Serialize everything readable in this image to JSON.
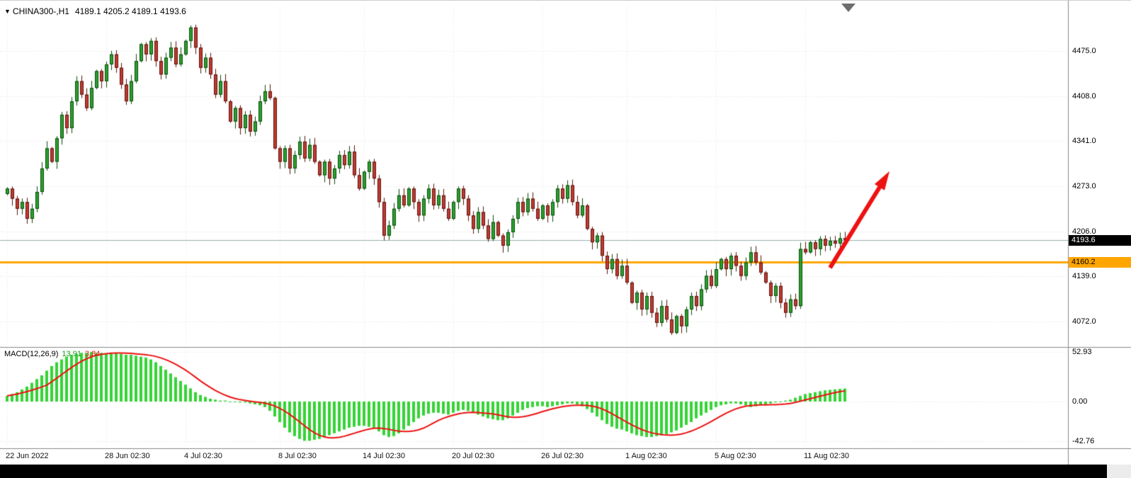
{
  "header": {
    "symbol": "CHINA300-,H1",
    "ohlc": "4189.1 4205.2 4189.1 4193.6"
  },
  "price_axis": {
    "current_price": "4193.6",
    "hline_price": "4160.2"
  },
  "indicator_label": {
    "name": "MACD(12,26,9)",
    "macd_value": "13.91",
    "signal_value": "3.84"
  },
  "colors": {
    "up": "#2aa12e",
    "up_border": "#0c4a0c",
    "down": "#c13a30",
    "down_border": "#5c130d",
    "macd_hist": "#35d435",
    "macd_value_text": "#1f9e1f",
    "signal": "#ee1111",
    "arrow": "#ee1111",
    "hline": "#ffa500",
    "price_line": "#9ab0b0",
    "badge_bid_bg": "#000000",
    "badge_bid_text": "#ffffff"
  },
  "chart_data": {
    "type": "candlestick",
    "symbol": "CHINA300-",
    "timeframe": "H1",
    "title": "CHINA300-,H1",
    "ohlc_current": {
      "open": 4189.1,
      "high": 4205.2,
      "low": 4189.1,
      "close": 4193.6
    },
    "price_ticks": [
      4475.0,
      4408.0,
      4341.0,
      4273.0,
      4206.0,
      4139.0,
      4072.0
    ],
    "current_price": 4193.6,
    "horizontal_line": 4160.2,
    "first_open": 4262,
    "x_ticks": [
      {
        "label": "22 Jun 2022",
        "i": 0
      },
      {
        "label": "28 Jun 02:30",
        "i": 20
      },
      {
        "label": "4 Jul 02:30",
        "i": 36
      },
      {
        "label": "8 Jul 02:30",
        "i": 55
      },
      {
        "label": "14 Jul 02:30",
        "i": 72
      },
      {
        "label": "20 Jul 02:30",
        "i": 90
      },
      {
        "label": "26 Jul 02:30",
        "i": 108
      },
      {
        "label": "1 Aug 02:30",
        "i": 125
      },
      {
        "label": "5 Aug 02:30",
        "i": 143
      },
      {
        "label": "11 Aug 02:30",
        "i": 161
      }
    ],
    "closes": [
      4270,
      4255,
      4240,
      4250,
      4225,
      4240,
      4265,
      4300,
      4330,
      4310,
      4345,
      4380,
      4360,
      4400,
      4430,
      4410,
      4390,
      4420,
      4445,
      4430,
      4455,
      4470,
      4450,
      4425,
      4400,
      4430,
      4460,
      4485,
      4470,
      4490,
      4460,
      4440,
      4465,
      4480,
      4455,
      4470,
      4490,
      4510,
      4480,
      4450,
      4465,
      4440,
      4410,
      4430,
      4400,
      4370,
      4390,
      4360,
      4380,
      4355,
      4370,
      4400,
      4415,
      4405,
      4330,
      4310,
      4330,
      4300,
      4320,
      4340,
      4315,
      4335,
      4310,
      4290,
      4310,
      4285,
      4300,
      4320,
      4305,
      4325,
      4290,
      4270,
      4295,
      4310,
      4285,
      4250,
      4200,
      4215,
      4240,
      4260,
      4245,
      4270,
      4250,
      4230,
      4255,
      4270,
      4245,
      4260,
      4240,
      4225,
      4250,
      4270,
      4255,
      4230,
      4210,
      4235,
      4215,
      4195,
      4220,
      4200,
      4185,
      4205,
      4225,
      4250,
      4235,
      4255,
      4240,
      4225,
      4245,
      4230,
      4250,
      4270,
      4255,
      4275,
      4250,
      4230,
      4245,
      4210,
      4190,
      4200,
      4170,
      4150,
      4165,
      4140,
      4155,
      4130,
      4100,
      4115,
      4090,
      4110,
      4085,
      4070,
      4095,
      4075,
      4055,
      4080,
      4065,
      4090,
      4110,
      4095,
      4120,
      4140,
      4125,
      4150,
      4165,
      4150,
      4170,
      4155,
      4140,
      4160,
      4175,
      4160,
      4145,
      4130,
      4110,
      4125,
      4100,
      4085,
      4105,
      4095,
      4180,
      4175,
      4190,
      4180,
      4195,
      4185,
      4192,
      4188,
      4196,
      4193.6
    ],
    "indicator": {
      "type": "macd_histogram",
      "label": "MACD(12,26,9)",
      "value_ticks": [
        52.93,
        0.0,
        -42.76
      ],
      "last_macd": 13.91,
      "last_signal": 3.84,
      "hist": [
        6,
        8,
        10,
        13,
        16,
        20,
        24,
        28,
        33,
        38,
        42,
        45,
        48,
        50,
        51,
        52,
        52,
        53,
        52,
        52,
        51,
        52,
        52,
        51,
        50,
        50,
        49,
        48,
        47,
        45,
        42,
        38,
        34,
        30,
        26,
        22,
        18,
        14,
        10,
        7,
        5,
        3,
        2,
        1,
        1,
        0,
        0,
        -1,
        -1,
        -2,
        -3,
        -4,
        -6,
        -10,
        -16,
        -22,
        -28,
        -33,
        -37,
        -40,
        -42,
        -42,
        -41,
        -40,
        -38,
        -36,
        -34,
        -32,
        -30,
        -28,
        -27,
        -26,
        -26,
        -27,
        -28,
        -32,
        -36,
        -38,
        -37,
        -34,
        -30,
        -26,
        -22,
        -18,
        -15,
        -13,
        -12,
        -12,
        -13,
        -14,
        -12,
        -10,
        -9,
        -10,
        -12,
        -14,
        -16,
        -18,
        -19,
        -20,
        -20,
        -18,
        -15,
        -12,
        -9,
        -7,
        -6,
        -5,
        -5,
        -6,
        -5,
        -4,
        -3,
        -2,
        -2,
        -3,
        -5,
        -8,
        -12,
        -16,
        -20,
        -24,
        -27,
        -29,
        -30,
        -32,
        -34,
        -36,
        -37,
        -38,
        -38,
        -37,
        -36,
        -35,
        -33,
        -31,
        -28,
        -25,
        -22,
        -18,
        -15,
        -12,
        -9,
        -6,
        -4,
        -3,
        -2,
        -2,
        -3,
        -4,
        -6,
        -5,
        -4,
        -3,
        -2,
        -1,
        0,
        1,
        2,
        4,
        6,
        8,
        9,
        10,
        11,
        12,
        12.5,
        13,
        13.5,
        13.91
      ]
    },
    "annotation_arrow": {
      "i1": 166,
      "p1": 4152,
      "i2": 178,
      "p2": 4296
    }
  }
}
